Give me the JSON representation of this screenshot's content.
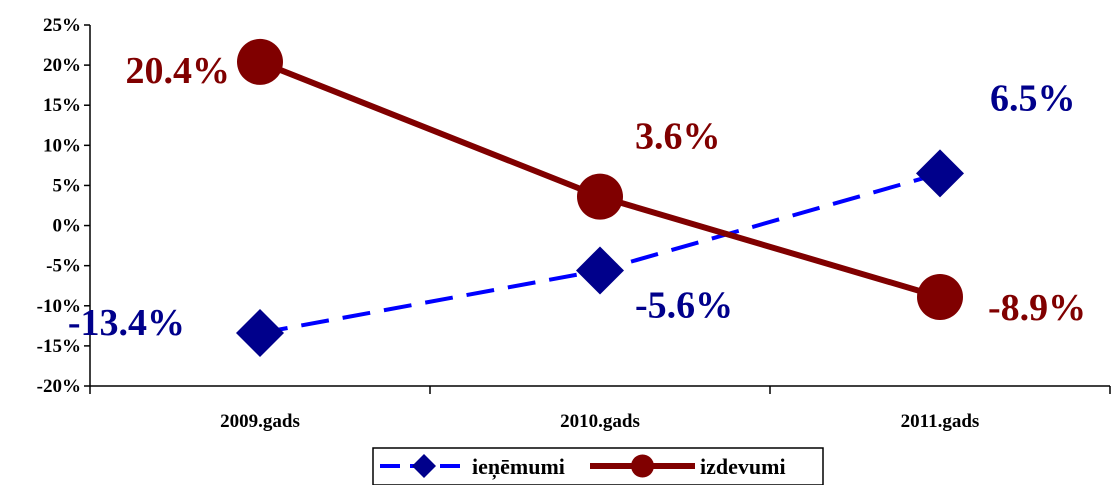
{
  "chart_data": {
    "type": "line",
    "categories": [
      "2009.gads",
      "2010.gads",
      "2011.gads"
    ],
    "series": [
      {
        "name": "ieņēmumi",
        "values": [
          -13.4,
          -5.6,
          6.5
        ],
        "labels": [
          "-13.4%",
          "-5.6%",
          "6.5%"
        ],
        "color": "#00008B",
        "line_color": "#0000FF",
        "line_style": "dashed",
        "marker": "diamond"
      },
      {
        "name": "izdevumi",
        "values": [
          20.4,
          3.6,
          -8.9
        ],
        "labels": [
          "20.4%",
          "3.6%",
          "-8.9%"
        ],
        "color": "#800000",
        "line_color": "#800000",
        "line_style": "solid",
        "marker": "circle"
      }
    ],
    "ylim": [
      -20,
      25
    ],
    "yticks": [
      "25%",
      "20%",
      "15%",
      "10%",
      "5%",
      "0%",
      "-5%",
      "-10%",
      "-15%",
      "-20%"
    ],
    "ytick_values": [
      25,
      20,
      15,
      10,
      5,
      0,
      -5,
      -10,
      -15,
      -20
    ],
    "grid": false,
    "legend_position": "bottom"
  }
}
